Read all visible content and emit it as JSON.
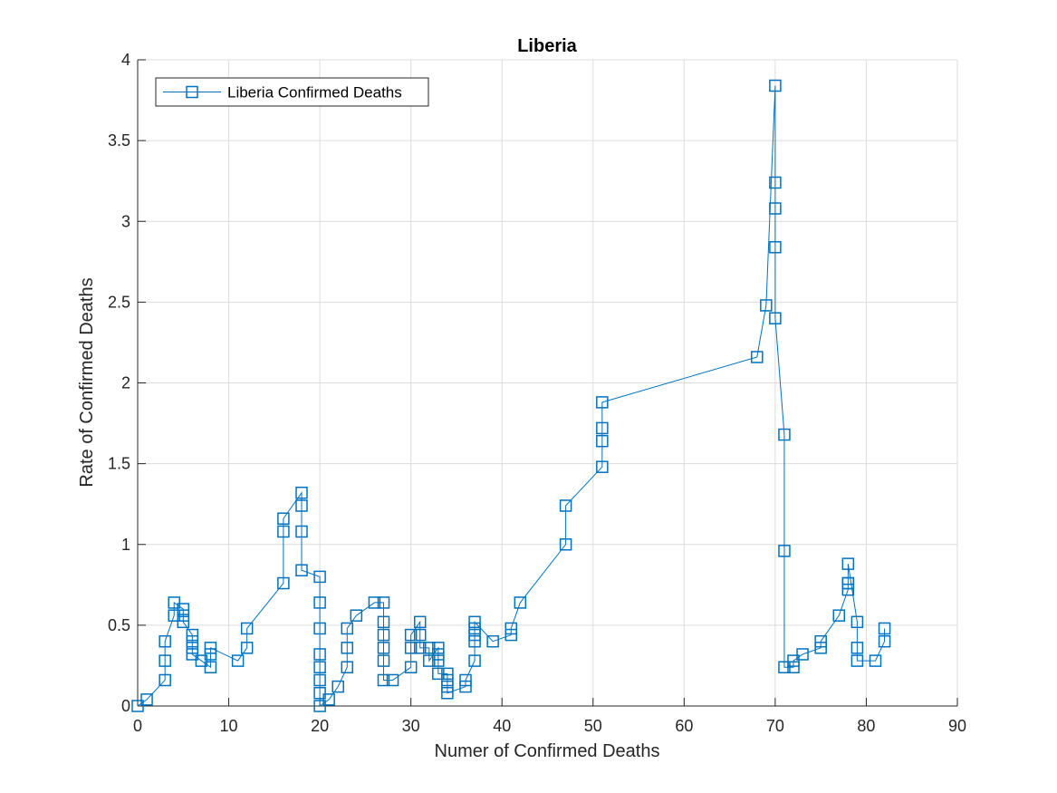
{
  "chart_data": {
    "type": "line",
    "title": "Liberia",
    "xlabel": "Numer of Confirmed Deaths",
    "ylabel": "Rate of Confirmed Deaths",
    "xlim": [
      0,
      90
    ],
    "ylim": [
      0,
      4
    ],
    "xticks": [
      0,
      10,
      20,
      30,
      40,
      50,
      60,
      70,
      80,
      90
    ],
    "yticks": [
      0,
      0.5,
      1,
      1.5,
      2,
      2.5,
      3,
      3.5,
      4
    ],
    "xtick_labels": [
      "0",
      "10",
      "20",
      "30",
      "40",
      "50",
      "60",
      "70",
      "80",
      "90"
    ],
    "ytick_labels": [
      "0",
      "0.5",
      "1",
      "1.5",
      "2",
      "2.5",
      "3",
      "3.5",
      "4"
    ],
    "grid": true,
    "legend_location": "top-left",
    "marker": "square",
    "color": "#0072BD",
    "series": [
      {
        "name": "Liberia Confirmed Deaths",
        "x": [
          0,
          1,
          3,
          3,
          3,
          4,
          4,
          5,
          5,
          5,
          6,
          6,
          6,
          6,
          7,
          8,
          8,
          8,
          11,
          12,
          12,
          16,
          16,
          16,
          18,
          18,
          18,
          18,
          20,
          20,
          20,
          20,
          20,
          20,
          20,
          20,
          21,
          22,
          23,
          23,
          23,
          24,
          26,
          27,
          27,
          27,
          27,
          27,
          27,
          28,
          30,
          30,
          30,
          31,
          31,
          31,
          32,
          32,
          33,
          33,
          33,
          33,
          34,
          34,
          34,
          34,
          36,
          36,
          37,
          37,
          37,
          37,
          37,
          39,
          41,
          41,
          42,
          47,
          47,
          51,
          51,
          51,
          51,
          68,
          69,
          70,
          70,
          70,
          70,
          70,
          71,
          71,
          71,
          72,
          72,
          73,
          75,
          75,
          77,
          78,
          78,
          78,
          78,
          79,
          79,
          79,
          81,
          82,
          82
        ],
        "y": [
          0,
          0.04,
          0.16,
          0.28,
          0.4,
          0.56,
          0.64,
          0.6,
          0.56,
          0.52,
          0.44,
          0.4,
          0.36,
          0.32,
          0.28,
          0.24,
          0.32,
          0.36,
          0.28,
          0.36,
          0.48,
          0.76,
          1.08,
          1.16,
          1.32,
          1.24,
          1.08,
          0.84,
          0.8,
          0.64,
          0.48,
          0.32,
          0.24,
          0.16,
          0.08,
          0,
          0.04,
          0.12,
          0.24,
          0.36,
          0.48,
          0.56,
          0.64,
          0.64,
          0.52,
          0.44,
          0.36,
          0.28,
          0.16,
          0.16,
          0.24,
          0.36,
          0.44,
          0.52,
          0.44,
          0.36,
          0.36,
          0.28,
          0.36,
          0.32,
          0.28,
          0.2,
          0.2,
          0.16,
          0.12,
          0.08,
          0.12,
          0.16,
          0.28,
          0.4,
          0.44,
          0.48,
          0.52,
          0.4,
          0.44,
          0.48,
          0.64,
          1.0,
          1.24,
          1.48,
          1.64,
          1.72,
          1.88,
          2.16,
          2.48,
          3.84,
          3.24,
          3.08,
          2.84,
          2.4,
          1.68,
          0.96,
          0.24,
          0.24,
          0.28,
          0.32,
          0.36,
          0.4,
          0.56,
          0.72,
          0.76,
          0.76,
          0.88,
          0.52,
          0.36,
          0.28,
          0.28,
          0.4,
          0.48
        ]
      }
    ]
  }
}
